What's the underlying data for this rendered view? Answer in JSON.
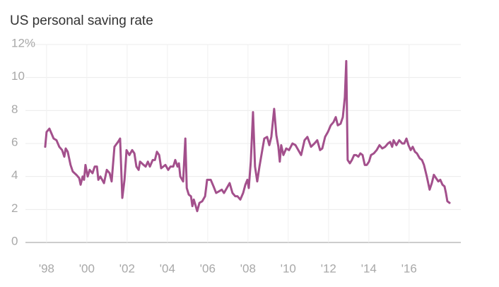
{
  "chart_data": {
    "type": "line",
    "title": "US personal saving rate",
    "x": [
      1997.93,
      1998.0,
      1998.14,
      1998.35,
      1998.49,
      1998.63,
      1998.77,
      1998.88,
      1998.95,
      1999.05,
      1999.19,
      1999.3,
      1999.48,
      1999.62,
      1999.69,
      1999.79,
      1999.86,
      1999.93,
      2000.04,
      2000.14,
      2000.28,
      2000.39,
      2000.5,
      2000.57,
      2000.67,
      2000.85,
      2000.99,
      2001.13,
      2001.23,
      2001.37,
      2001.55,
      2001.65,
      2001.76,
      2001.87,
      2001.97,
      2002.11,
      2002.25,
      2002.36,
      2002.46,
      2002.57,
      2002.64,
      2002.82,
      2002.92,
      2003.03,
      2003.13,
      2003.27,
      2003.38,
      2003.48,
      2003.59,
      2003.69,
      2003.9,
      2004.04,
      2004.15,
      2004.29,
      2004.39,
      2004.5,
      2004.57,
      2004.64,
      2004.78,
      2004.89,
      2004.96,
      2005.06,
      2005.17,
      2005.24,
      2005.31,
      2005.48,
      2005.59,
      2005.73,
      2005.87,
      2005.97,
      2006.15,
      2006.29,
      2006.42,
      2006.56,
      2006.7,
      2006.81,
      2006.95,
      2007.09,
      2007.23,
      2007.37,
      2007.48,
      2007.62,
      2007.76,
      2007.87,
      2007.97,
      2008.04,
      2008.14,
      2008.25,
      2008.35,
      2008.46,
      2008.57,
      2008.71,
      2008.81,
      2008.95,
      2009.06,
      2009.16,
      2009.3,
      2009.41,
      2009.51,
      2009.58,
      2009.65,
      2009.76,
      2009.9,
      2010.04,
      2010.21,
      2010.36,
      2010.5,
      2010.64,
      2010.81,
      2010.95,
      2011.13,
      2011.3,
      2011.44,
      2011.58,
      2011.69,
      2011.83,
      2011.97,
      2012.11,
      2012.25,
      2012.36,
      2012.46,
      2012.6,
      2012.71,
      2012.81,
      2012.88,
      2012.95,
      2013.06,
      2013.16,
      2013.27,
      2013.37,
      2013.48,
      2013.58,
      2013.69,
      2013.8,
      2013.9,
      2014.01,
      2014.11,
      2014.25,
      2014.39,
      2014.53,
      2014.67,
      2014.81,
      2014.95,
      2015.06,
      2015.16,
      2015.23,
      2015.37,
      2015.51,
      2015.66,
      2015.76,
      2015.87,
      2015.97,
      2016.08,
      2016.18,
      2016.29,
      2016.39,
      2016.53,
      2016.64,
      2016.74,
      2016.88,
      2017.02,
      2017.13,
      2017.23,
      2017.34,
      2017.45,
      2017.55,
      2017.66,
      2017.76,
      2017.83,
      2017.9,
      2018.01
    ],
    "values": [
      5.8,
      6.7,
      6.9,
      6.3,
      6.2,
      5.8,
      5.6,
      5.2,
      5.7,
      5.5,
      4.7,
      4.3,
      4.1,
      3.9,
      3.5,
      4.0,
      3.8,
      4.7,
      4.0,
      4.4,
      4.2,
      4.6,
      4.6,
      3.8,
      4.0,
      3.6,
      4.4,
      4.2,
      3.7,
      5.8,
      6.1,
      6.3,
      2.7,
      3.8,
      5.6,
      5.3,
      5.6,
      5.4,
      4.6,
      4.4,
      4.9,
      4.7,
      4.6,
      4.9,
      4.6,
      5.0,
      5.0,
      5.5,
      5.3,
      4.5,
      4.7,
      4.4,
      4.6,
      4.6,
      5.0,
      4.6,
      4.8,
      4.0,
      3.7,
      6.3,
      3.3,
      2.9,
      2.8,
      2.2,
      2.6,
      1.9,
      2.4,
      2.5,
      2.8,
      3.8,
      3.8,
      3.4,
      3.0,
      3.1,
      3.2,
      3.0,
      3.3,
      3.6,
      3.0,
      2.8,
      2.8,
      2.6,
      3.0,
      3.5,
      3.8,
      3.3,
      4.9,
      7.9,
      4.6,
      3.7,
      4.6,
      5.6,
      6.3,
      6.4,
      5.9,
      6.4,
      8.1,
      6.5,
      5.8,
      4.9,
      5.9,
      5.3,
      5.7,
      5.6,
      6.0,
      5.9,
      5.6,
      5.3,
      6.2,
      6.4,
      5.8,
      6.0,
      6.2,
      5.6,
      5.7,
      6.4,
      6.7,
      7.1,
      7.3,
      7.6,
      7.1,
      7.2,
      7.6,
      8.8,
      11.0,
      5.0,
      4.8,
      5.0,
      5.3,
      5.3,
      5.2,
      5.4,
      5.3,
      4.7,
      4.7,
      4.9,
      5.3,
      5.4,
      5.6,
      5.9,
      5.7,
      5.8,
      6.0,
      6.1,
      5.8,
      6.2,
      5.9,
      6.2,
      6.0,
      6.0,
      6.3,
      5.9,
      5.6,
      5.8,
      5.5,
      5.4,
      5.1,
      5.0,
      4.7,
      4.0,
      3.2,
      3.6,
      4.1,
      3.9,
      3.7,
      3.8,
      3.5,
      3.4,
      3.0,
      2.5,
      2.4
    ],
    "color": "#a3508c",
    "xlim": [
      1996.95,
      2018.57
    ],
    "xticks": [
      {
        "value": 1998,
        "label": "'98"
      },
      {
        "value": 2000,
        "label": "'00"
      },
      {
        "value": 2002,
        "label": "'02"
      },
      {
        "value": 2004,
        "label": "'04"
      },
      {
        "value": 2006,
        "label": "'06"
      },
      {
        "value": 2008,
        "label": "'08"
      },
      {
        "value": 2010,
        "label": "'10"
      },
      {
        "value": 2012,
        "label": "'12"
      },
      {
        "value": 2014,
        "label": "'14"
      },
      {
        "value": 2016,
        "label": "'16"
      }
    ],
    "ylim": [
      0,
      12
    ],
    "yticks": [
      0,
      2,
      4,
      6,
      8,
      10,
      {
        "value": 12,
        "label": "12%"
      }
    ],
    "grid": true
  }
}
